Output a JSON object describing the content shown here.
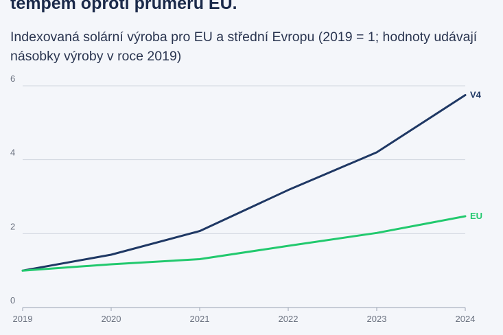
{
  "header": {
    "title": "tempem oproti průměru EU.",
    "subtitle": "Indexovaná solární výroba pro EU a střední Evropu (2019 = 1; hodnoty udávají násobky výroby v roce 2019)"
  },
  "chart_data": {
    "type": "line",
    "x": [
      "2019",
      "2020",
      "2021",
      "2022",
      "2023",
      "2024"
    ],
    "ylim": [
      0,
      6
    ],
    "yticks": [
      0,
      2,
      4,
      6
    ],
    "grid": true,
    "series": [
      {
        "name": "V4",
        "color": "#1f3864",
        "values": [
          1.0,
          1.43,
          2.07,
          3.18,
          4.2,
          5.75
        ]
      },
      {
        "name": "EU",
        "color": "#22c96e",
        "values": [
          1.0,
          1.17,
          1.31,
          1.67,
          2.02,
          2.47
        ]
      }
    ]
  }
}
